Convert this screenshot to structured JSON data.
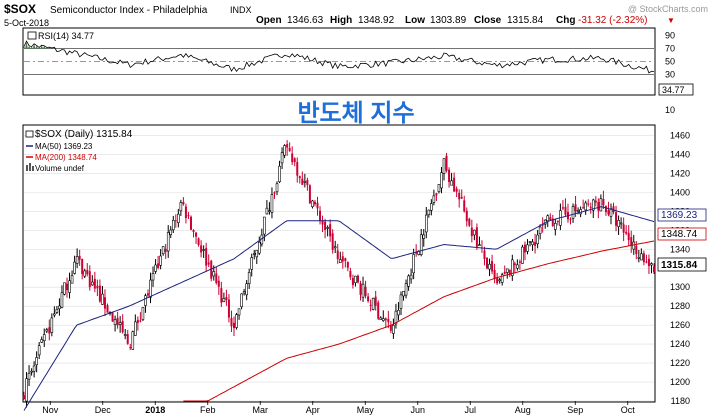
{
  "header": {
    "symbol": "$SOX",
    "name": "Semiconductor Index - Philadelphia",
    "exchange": "INDX",
    "date": "5-Oct-2018",
    "watermark": "@ StockCharts.com",
    "quote": {
      "open_label": "Open",
      "open": "1346.63",
      "high_label": "High",
      "high": "1348.92",
      "low_label": "Low",
      "low": "1303.89",
      "close_label": "Close",
      "close": "1315.84",
      "chg_label": "Chg",
      "chg": "-31.32 (-2.32%)",
      "down_arrow": "▼"
    }
  },
  "rsi_panel": {
    "legend": "RSI(14) 34.77",
    "current_value_label": "34.77",
    "levels": [
      90,
      70,
      50,
      30,
      10
    ],
    "overbought": 70,
    "oversold": 30,
    "centerline": 50
  },
  "overlay_text": "반도체 지수",
  "price_panel": {
    "legend_main": "$SOX (Daily) 1315.84",
    "legend_ma50": "MA(50) 1369.23",
    "legend_ma200": "MA(200) 1348.74",
    "legend_volume": "Volume undef",
    "tags": {
      "ma50": "1369.23",
      "ma200": "1348.74",
      "price": "1315.84"
    },
    "y_ticks": [
      1180,
      1200,
      1220,
      1240,
      1260,
      1280,
      1300,
      1320,
      1340,
      1360,
      1380,
      1400,
      1420,
      1440,
      1460
    ],
    "x_ticks": [
      {
        "label": "Nov",
        "bold": false
      },
      {
        "label": "Dec",
        "bold": false
      },
      {
        "label": "2018",
        "bold": true
      },
      {
        "label": "Feb",
        "bold": false
      },
      {
        "label": "Mar",
        "bold": false
      },
      {
        "label": "Apr",
        "bold": false
      },
      {
        "label": "May",
        "bold": false
      },
      {
        "label": "Jun",
        "bold": false
      },
      {
        "label": "Jul",
        "bold": false
      },
      {
        "label": "Aug",
        "bold": false
      },
      {
        "label": "Sep",
        "bold": false
      },
      {
        "label": "Oct",
        "bold": false
      }
    ]
  },
  "colors": {
    "up": "#000000",
    "down": "#cc0033",
    "ma50": "#1a237e",
    "ma200": "#cc0000",
    "rsi_fill": "#4a7a4a",
    "chg": "#cc0000",
    "grid": "#dddddd"
  },
  "chart_data": [
    {
      "type": "line",
      "title": "RSI(14) 34.77",
      "ylim": [
        0,
        100
      ],
      "x": [
        "Oct 2017",
        "Nov",
        "Dec",
        "Jan 2018",
        "Feb",
        "Mar",
        "Apr",
        "May",
        "Jun",
        "Jul",
        "Aug",
        "Sep",
        "Oct 5"
      ],
      "series": [
        {
          "name": "RSI(14)",
          "values": [
            78,
            62,
            45,
            60,
            38,
            63,
            42,
            48,
            58,
            44,
            53,
            55,
            34.77
          ]
        }
      ]
    },
    {
      "type": "line",
      "title": "$SOX (Daily) 1315.84",
      "ylim": [
        1180,
        1470
      ],
      "x": [
        "Oct 2017",
        "Nov",
        "Dec",
        "Jan 2018",
        "Feb",
        "Mar",
        "Apr",
        "May",
        "Jun",
        "Jul",
        "Aug",
        "Sep",
        "Oct 5"
      ],
      "series": [
        {
          "name": "$SOX",
          "values": [
            1190,
            1330,
            1240,
            1390,
            1260,
            1450,
            1330,
            1255,
            1430,
            1300,
            1370,
            1390,
            1315.84
          ]
        },
        {
          "name": "MA(50)",
          "values": [
            1170,
            1260,
            1280,
            1305,
            1330,
            1370,
            1370,
            1330,
            1345,
            1340,
            1370,
            1385,
            1369.23
          ]
        },
        {
          "name": "MA(200)",
          "values": [
            null,
            null,
            null,
            1165,
            1195,
            1225,
            1240,
            1260,
            1290,
            1310,
            1325,
            1338,
            1348.74
          ]
        }
      ]
    }
  ]
}
